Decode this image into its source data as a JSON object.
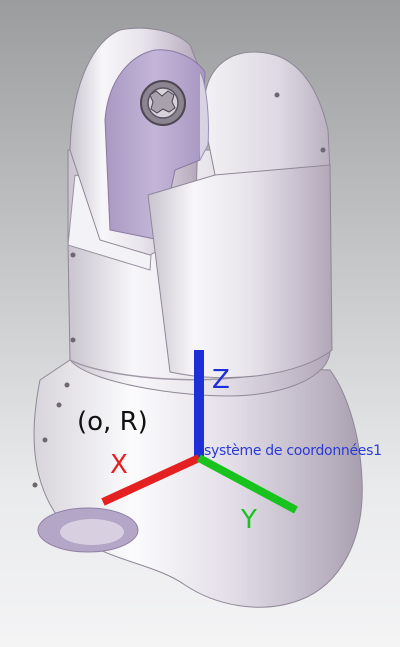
{
  "viewport": {
    "origin_label": "(o, R)",
    "coordinate_system_name": "système de coordonnées1",
    "axes": {
      "x": {
        "label": "X",
        "color": "#e52020"
      },
      "y": {
        "label": "Y",
        "color": "#19c31e"
      },
      "z": {
        "label": "Z",
        "color": "#1f2fd8"
      }
    },
    "colors": {
      "part_body": "#e6e3ea",
      "part_shadow": "#b5adba",
      "fork_face": "#b8a7cf",
      "background_top": "#9a9c9e",
      "background_bottom": "#f4f4f5"
    }
  }
}
